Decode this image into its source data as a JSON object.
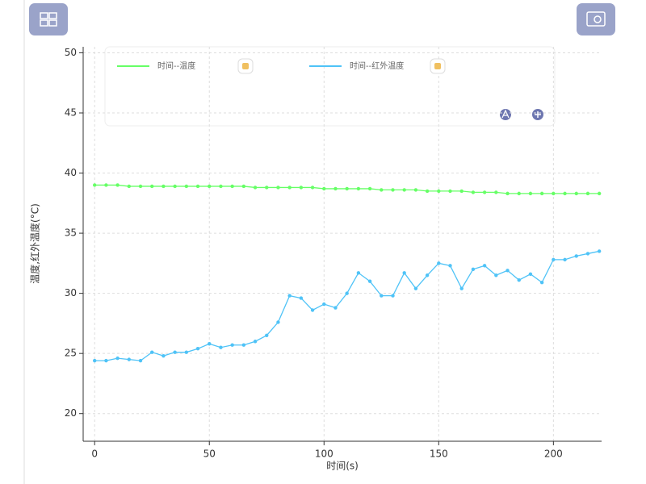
{
  "chart_data": {
    "type": "line",
    "x_label": "时间(s)",
    "y_label": "温度,红外温度(°C)",
    "x": [
      0,
      5,
      10,
      15,
      20,
      25,
      30,
      35,
      40,
      45,
      50,
      55,
      60,
      65,
      70,
      75,
      80,
      85,
      90,
      95,
      100,
      105,
      110,
      115,
      120,
      125,
      130,
      135,
      140,
      145,
      150,
      155,
      160,
      165,
      170,
      175,
      180,
      185,
      190,
      195,
      200,
      205,
      210,
      215,
      220
    ],
    "series": [
      {
        "name": "时间--温度",
        "color": "#66ff66",
        "values": [
          39.0,
          39.0,
          39.0,
          38.9,
          38.9,
          38.9,
          38.9,
          38.9,
          38.9,
          38.9,
          38.9,
          38.9,
          38.9,
          38.9,
          38.8,
          38.8,
          38.8,
          38.8,
          38.8,
          38.8,
          38.7,
          38.7,
          38.7,
          38.7,
          38.7,
          38.6,
          38.6,
          38.6,
          38.6,
          38.5,
          38.5,
          38.5,
          38.5,
          38.4,
          38.4,
          38.4,
          38.3,
          38.3,
          38.3,
          38.3,
          38.3,
          38.3,
          38.3,
          38.3,
          38.3
        ]
      },
      {
        "name": "时间--红外温度",
        "color": "#4fc3f7",
        "values": [
          24.4,
          24.4,
          24.6,
          24.5,
          24.4,
          25.1,
          24.8,
          25.1,
          25.1,
          25.4,
          25.8,
          25.5,
          25.7,
          25.7,
          26.0,
          26.5,
          27.6,
          29.8,
          29.6,
          28.6,
          29.1,
          28.8,
          30.0,
          31.7,
          31.0,
          29.8,
          29.8,
          31.7,
          30.4,
          31.5,
          32.5,
          32.3,
          30.4,
          32.0,
          32.3,
          31.5,
          31.9,
          31.1,
          31.6,
          30.9,
          32.8,
          32.8,
          33.1,
          33.3,
          33.5
        ]
      }
    ],
    "xlim": [
      -5,
      221
    ],
    "xticks": [
      0,
      50,
      100,
      150,
      200
    ],
    "ylim": [
      17.7,
      50.5
    ],
    "yticks": [
      20,
      25,
      30,
      35,
      40,
      45,
      50
    ],
    "grid": true,
    "legend": "top"
  }
}
